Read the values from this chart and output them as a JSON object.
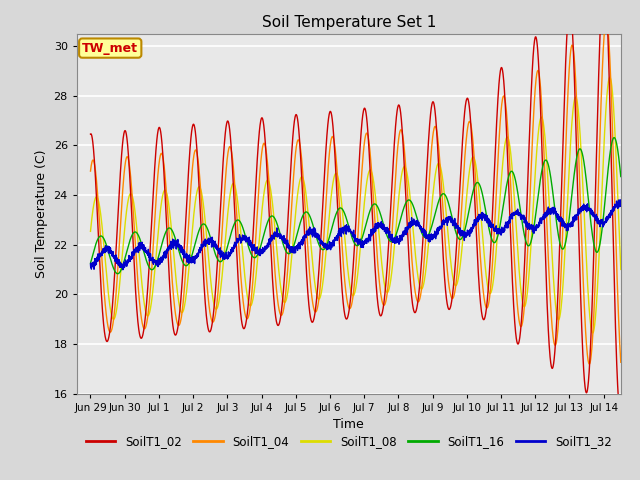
{
  "title": "Soil Temperature Set 1",
  "xlabel": "Time",
  "ylabel": "Soil Temperature (C)",
  "ylim": [
    16,
    30.5
  ],
  "background_color": "#e8e8e8",
  "grid_color": "white",
  "annotation_text": "TW_met",
  "annotation_color": "#cc0000",
  "annotation_bg": "#ffff99",
  "annotation_border": "#bb8800",
  "series_colors": {
    "SoilT1_02": "#cc0000",
    "SoilT1_04": "#ff8800",
    "SoilT1_08": "#dddd00",
    "SoilT1_16": "#00aa00",
    "SoilT1_32": "#0000cc"
  },
  "xtick_labels": [
    "Jun 29",
    "Jun 30",
    "Jul 1",
    "Jul 2",
    "Jul 3",
    "Jul 4",
    "Jul 5",
    "Jul 6",
    "Jul 7",
    "Jul 8",
    "Jul 9",
    "Jul 10",
    "Jul 11",
    "Jul 12",
    "Jul 13",
    "Jul 14"
  ],
  "xtick_positions": [
    0,
    1,
    2,
    3,
    4,
    5,
    6,
    7,
    8,
    9,
    10,
    11,
    12,
    13,
    14,
    15
  ],
  "ytick_positions": [
    16,
    18,
    20,
    22,
    24,
    26,
    28,
    30
  ],
  "figsize": [
    6.4,
    4.8
  ],
  "dpi": 100
}
